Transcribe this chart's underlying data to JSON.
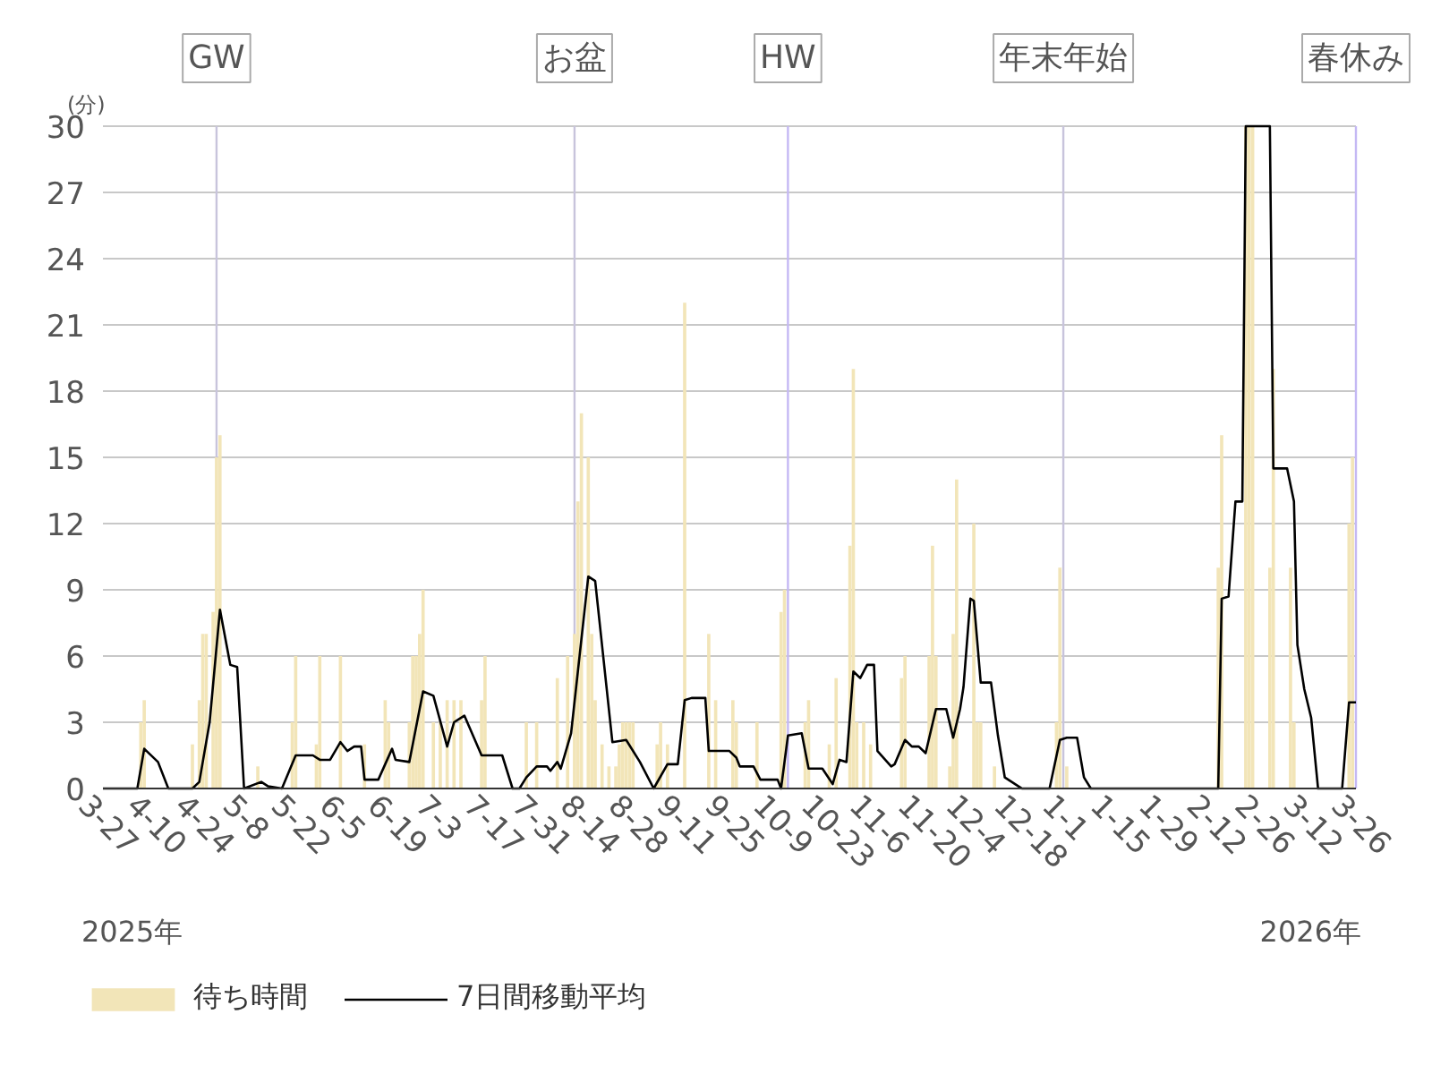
{
  "chart_data": {
    "type": "bar",
    "ylabel": "(分)",
    "xlim": [
      "2025-03-27",
      "2026-03-26"
    ],
    "ylim": [
      0,
      30
    ],
    "xticks": [
      {
        "value": "2025-03-27",
        "label": "3-27"
      },
      {
        "value": "2025-04-10",
        "label": "4-10"
      },
      {
        "value": "2025-04-24",
        "label": "4-24"
      },
      {
        "value": "2025-05-08",
        "label": "5-8"
      },
      {
        "value": "2025-05-22",
        "label": "5-22"
      },
      {
        "value": "2025-06-05",
        "label": "6-5"
      },
      {
        "value": "2025-06-19",
        "label": "6-19"
      },
      {
        "value": "2025-07-03",
        "label": "7-3"
      },
      {
        "value": "2025-07-17",
        "label": "7-17"
      },
      {
        "value": "2025-07-31",
        "label": "7-31"
      },
      {
        "value": "2025-08-14",
        "label": "8-14"
      },
      {
        "value": "2025-08-28",
        "label": "8-28"
      },
      {
        "value": "2025-09-11",
        "label": "9-11"
      },
      {
        "value": "2025-09-25",
        "label": "9-25"
      },
      {
        "value": "2025-10-09",
        "label": "10-9"
      },
      {
        "value": "2025-10-23",
        "label": "10-23"
      },
      {
        "value": "2025-11-06",
        "label": "11-6"
      },
      {
        "value": "2025-11-20",
        "label": "11-20"
      },
      {
        "value": "2025-12-04",
        "label": "12-4"
      },
      {
        "value": "2025-12-18",
        "label": "12-18"
      },
      {
        "value": "2026-01-01",
        "label": "1-1"
      },
      {
        "value": "2026-01-15",
        "label": "1-15"
      },
      {
        "value": "2026-01-29",
        "label": "1-29"
      },
      {
        "value": "2026-02-12",
        "label": "2-12"
      },
      {
        "value": "2026-02-26",
        "label": "2-26"
      },
      {
        "value": "2026-03-12",
        "label": "3-12"
      },
      {
        "value": "2026-03-26",
        "label": "3-26"
      }
    ],
    "yticks": [
      0,
      3,
      6,
      9,
      12,
      15,
      18,
      21,
      24,
      27,
      30
    ],
    "grid": "y",
    "legend": "bottom",
    "series": [
      {
        "name": "待ち時間",
        "color": "#f2e5b8",
        "x": [
          "2025-04-07",
          "2025-04-08",
          "2025-04-22",
          "2025-04-24",
          "2025-04-25",
          "2025-04-26",
          "2025-04-28",
          "2025-04-29",
          "2025-04-30",
          "2025-05-11",
          "2025-05-21",
          "2025-05-22",
          "2025-05-28",
          "2025-05-29",
          "2025-06-04",
          "2025-06-11",
          "2025-06-17",
          "2025-06-18",
          "2025-06-24",
          "2025-06-25",
          "2025-06-26",
          "2025-06-27",
          "2025-06-28",
          "2025-07-01",
          "2025-07-03",
          "2025-07-05",
          "2025-07-07",
          "2025-07-09",
          "2025-07-15",
          "2025-07-16",
          "2025-07-28",
          "2025-07-31",
          "2025-08-06",
          "2025-08-09",
          "2025-08-11",
          "2025-08-12",
          "2025-08-13",
          "2025-08-15",
          "2025-08-16",
          "2025-08-17",
          "2025-08-19",
          "2025-08-21",
          "2025-08-23",
          "2025-08-24",
          "2025-08-25",
          "2025-08-26",
          "2025-08-27",
          "2025-08-28",
          "2025-09-04",
          "2025-09-05",
          "2025-09-07",
          "2025-09-12",
          "2025-09-19",
          "2025-09-21",
          "2025-09-26",
          "2025-09-27",
          "2025-10-03",
          "2025-10-10",
          "2025-10-11",
          "2025-10-17",
          "2025-10-18",
          "2025-10-24",
          "2025-10-26",
          "2025-10-30",
          "2025-10-31",
          "2025-11-01",
          "2025-11-03",
          "2025-11-05",
          "2025-11-14",
          "2025-11-15",
          "2025-11-22",
          "2025-11-23",
          "2025-11-24",
          "2025-11-28",
          "2025-11-29",
          "2025-11-30",
          "2025-12-05",
          "2025-12-06",
          "2025-12-07",
          "2025-12-11",
          "2025-12-29",
          "2025-12-30",
          "2026-01-01",
          "2026-02-14",
          "2026-02-15",
          "2026-02-22",
          "2026-02-23",
          "2026-02-24",
          "2026-03-01",
          "2026-03-02",
          "2026-03-07",
          "2026-03-08",
          "2026-03-24",
          "2026-03-25"
        ],
        "values": [
          3,
          4,
          2,
          4,
          7,
          7,
          8,
          15,
          16,
          1,
          3,
          6,
          2,
          6,
          6,
          2,
          4,
          3,
          3,
          6,
          6,
          7,
          9,
          3,
          3,
          4,
          4,
          4,
          4,
          6,
          3,
          3,
          5,
          6,
          7,
          13,
          17,
          15,
          7,
          4,
          2,
          1,
          1,
          2,
          3,
          3,
          3,
          3,
          2,
          3,
          2,
          22,
          7,
          4,
          4,
          3,
          3,
          8,
          9,
          3,
          4,
          2,
          5,
          11,
          19,
          3,
          3,
          2,
          5,
          6,
          6,
          11,
          6,
          1,
          7,
          14,
          12,
          3,
          3,
          1,
          3,
          10,
          1,
          10,
          16,
          30,
          30,
          30,
          10,
          19,
          10,
          3,
          12,
          15
        ]
      },
      {
        "name": "7日間移動平均",
        "type": "line",
        "color": "#000000",
        "x": [
          "2025-03-27",
          "2025-04-06",
          "2025-04-08",
          "2025-04-12",
          "2025-04-15",
          "2025-04-22",
          "2025-04-24",
          "2025-04-27",
          "2025-04-30",
          "2025-05-03",
          "2025-05-05",
          "2025-05-07",
          "2025-05-12",
          "2025-05-14",
          "2025-05-18",
          "2025-05-22",
          "2025-05-27",
          "2025-05-29",
          "2025-06-01",
          "2025-06-04",
          "2025-06-06",
          "2025-06-08",
          "2025-06-10",
          "2025-06-11",
          "2025-06-15",
          "2025-06-17",
          "2025-06-19",
          "2025-06-20",
          "2025-06-24",
          "2025-06-28",
          "2025-07-01",
          "2025-07-05",
          "2025-07-07",
          "2025-07-10",
          "2025-07-15",
          "2025-07-21",
          "2025-07-24",
          "2025-07-26",
          "2025-07-28",
          "2025-07-31",
          "2025-08-03",
          "2025-08-04",
          "2025-08-06",
          "2025-08-07",
          "2025-08-10",
          "2025-08-15",
          "2025-08-17",
          "2025-08-22",
          "2025-08-26",
          "2025-08-30",
          "2025-09-03",
          "2025-09-07",
          "2025-09-10",
          "2025-09-12",
          "2025-09-14",
          "2025-09-18",
          "2025-09-19",
          "2025-09-25",
          "2025-09-27",
          "2025-09-28",
          "2025-10-02",
          "2025-10-04",
          "2025-10-09",
          "2025-10-10",
          "2025-10-12",
          "2025-10-16",
          "2025-10-18",
          "2025-10-22",
          "2025-10-25",
          "2025-10-27",
          "2025-10-29",
          "2025-10-31",
          "2025-11-02",
          "2025-11-04",
          "2025-11-06",
          "2025-11-07",
          "2025-11-11",
          "2025-11-12",
          "2025-11-15",
          "2025-11-17",
          "2025-11-19",
          "2025-11-21",
          "2025-11-24",
          "2025-11-27",
          "2025-11-29",
          "2025-12-01",
          "2025-12-02",
          "2025-12-04",
          "2025-12-05",
          "2025-12-07",
          "2025-12-10",
          "2025-12-12",
          "2025-12-14",
          "2025-12-18",
          "2025-12-19",
          "2025-12-27",
          "2025-12-30",
          "2026-01-01",
          "2026-01-04",
          "2026-01-06",
          "2026-01-08",
          "2026-02-14",
          "2026-02-15",
          "2026-02-17",
          "2026-02-19",
          "2026-02-21",
          "2026-02-22",
          "2026-03-01",
          "2026-03-02",
          "2026-03-06",
          "2026-03-08",
          "2026-03-09",
          "2026-03-11",
          "2026-03-13",
          "2026-03-15",
          "2026-03-22",
          "2026-03-24",
          "2026-03-26"
        ],
        "values": [
          0,
          0,
          1.8,
          1.2,
          0,
          0,
          0.3,
          3,
          8.1,
          5.6,
          5.5,
          0,
          0.3,
          0.1,
          0,
          1.5,
          1.5,
          1.3,
          1.3,
          2.1,
          1.7,
          1.9,
          1.9,
          0.4,
          0.4,
          1.1,
          1.8,
          1.3,
          1.2,
          4.4,
          4.2,
          1.9,
          3,
          3.3,
          1.5,
          1.5,
          0,
          0,
          0.5,
          1,
          1,
          0.8,
          1.2,
          0.9,
          2.5,
          9.6,
          9.4,
          2.1,
          2.2,
          1.2,
          0,
          1.1,
          1.1,
          4,
          4.1,
          4.1,
          1.7,
          1.7,
          1.4,
          1,
          1,
          0.4,
          0.4,
          0,
          2.4,
          2.5,
          0.9,
          0.9,
          0.2,
          1.3,
          1.2,
          5.3,
          5,
          5.6,
          5.6,
          1.7,
          1,
          1.1,
          2.2,
          1.9,
          1.9,
          1.6,
          3.6,
          3.6,
          2.3,
          3.6,
          4.6,
          8.6,
          8.5,
          4.8,
          4.8,
          2.4,
          0.5,
          0.1,
          0,
          0,
          2.2,
          2.3,
          2.3,
          0.5,
          0,
          0,
          8.6,
          8.7,
          13,
          13,
          30,
          30,
          14.5,
          14.5,
          13,
          6.5,
          4.5,
          3.2,
          0,
          0,
          3.9,
          3.9
        ]
      }
    ],
    "ref_lines": [
      {
        "axis": "x",
        "value": "2025-04-29",
        "label": "GW",
        "color": "#c8c4dc"
      },
      {
        "axis": "x",
        "value": "2025-08-11",
        "label": "お盆",
        "color": "#c8c4dc"
      },
      {
        "axis": "x",
        "value": "2025-10-12",
        "label": "HW",
        "color": "#c4b8f4"
      },
      {
        "axis": "x",
        "value": "2025-12-31",
        "label": "年末年始",
        "color": "#c8c4dc"
      },
      {
        "axis": "x",
        "value": "2026-03-26",
        "label": "春休み",
        "color": "#c4b8f4"
      }
    ],
    "annotations": [
      "2025年",
      "2026年"
    ]
  }
}
